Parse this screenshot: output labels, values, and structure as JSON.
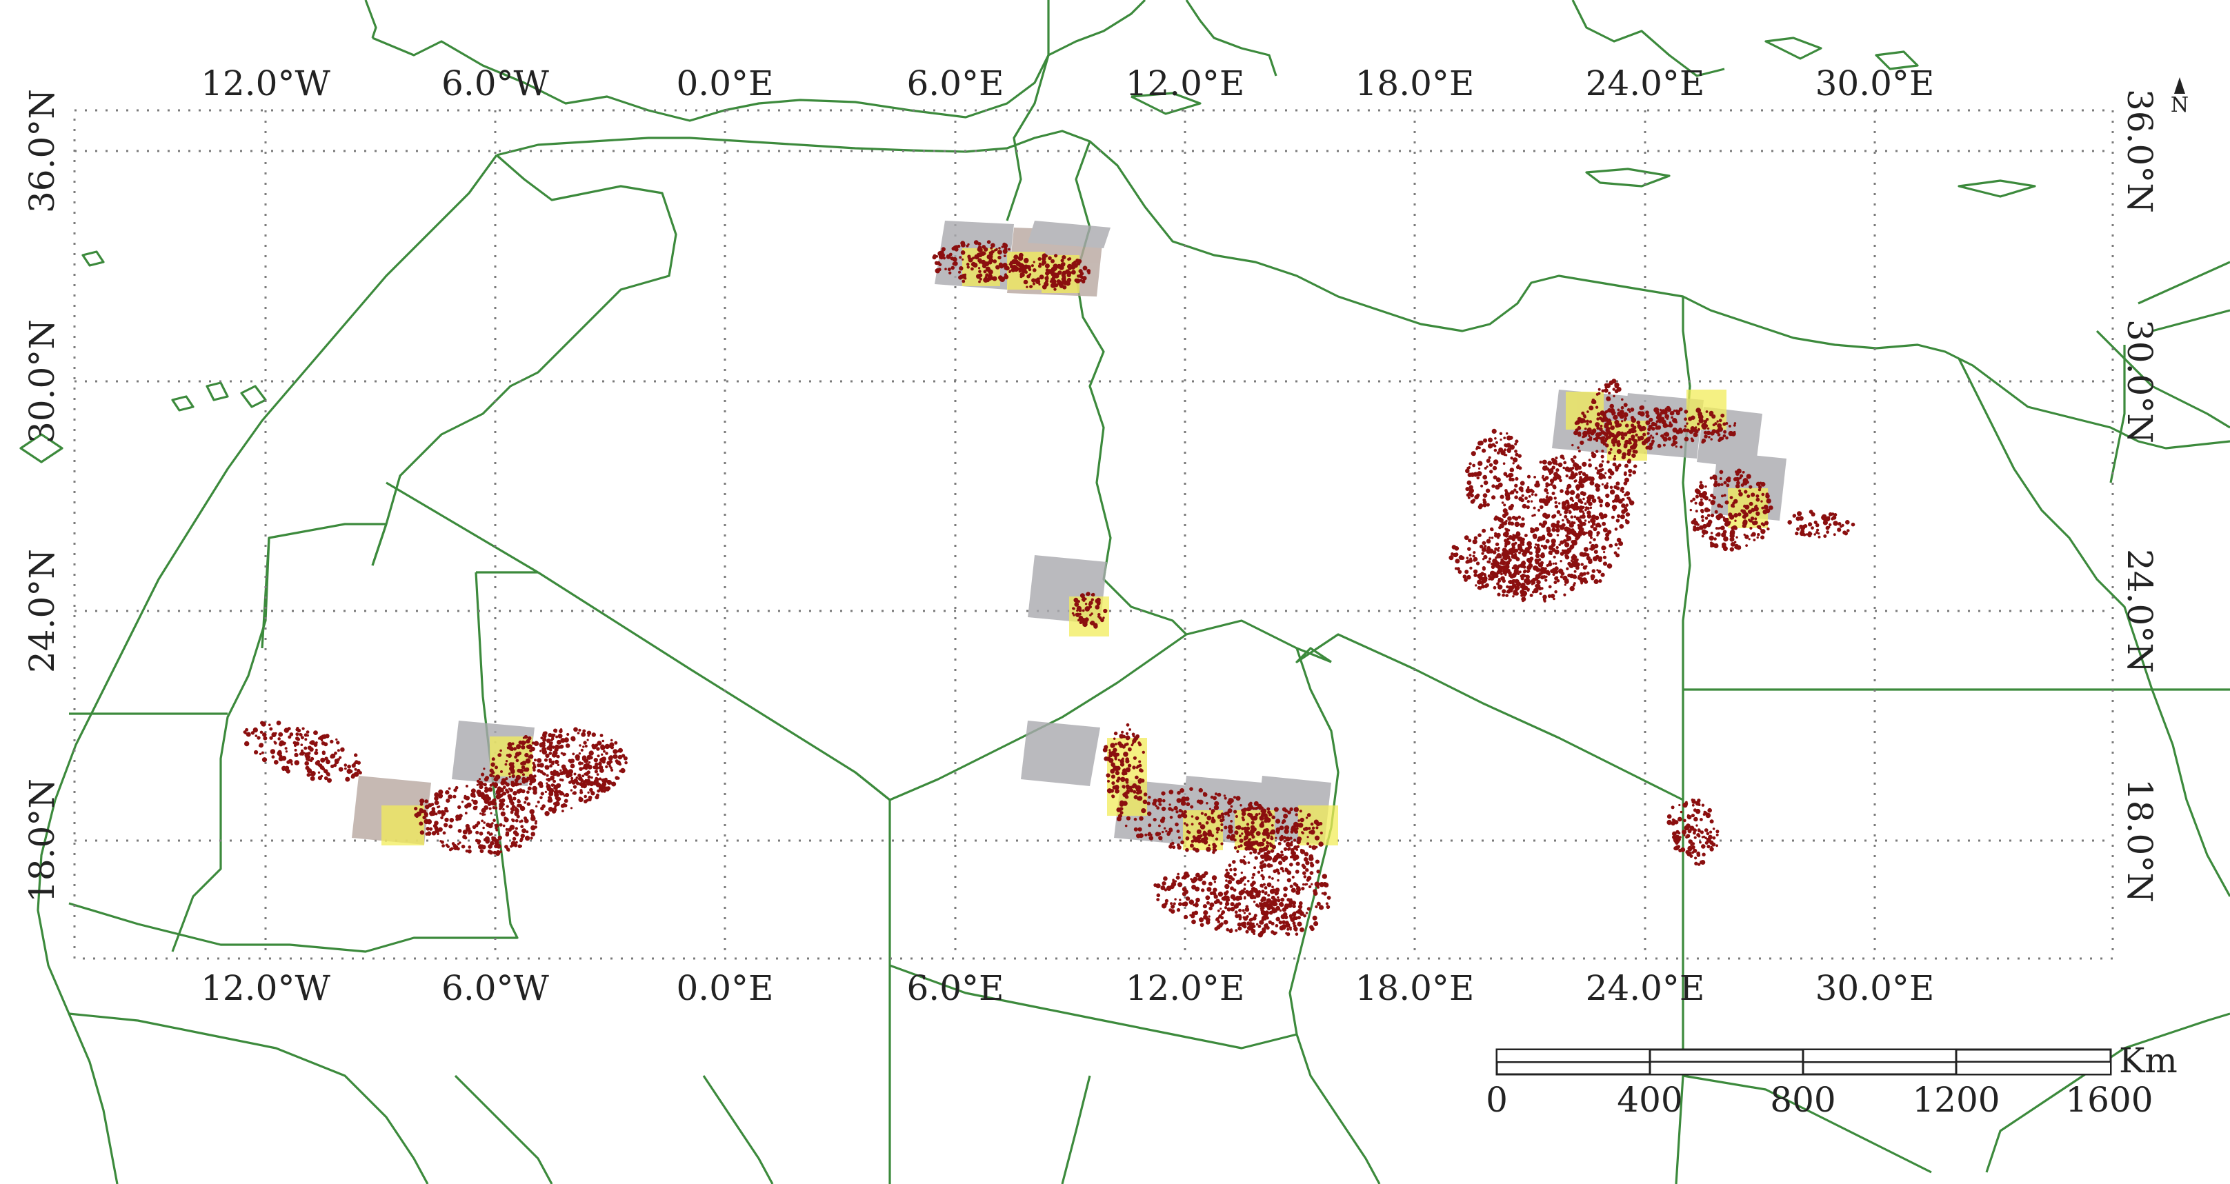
{
  "map": {
    "top_lon_labels": [
      "12.0°W",
      "6.0°W",
      "0.0°E",
      "6.0°E",
      "12.0°E",
      "18.0°E",
      "24.0°E",
      "30.0°E"
    ],
    "bottom_lon_labels": [
      "12.0°W",
      "6.0°W",
      "0.0°E",
      "6.0°E",
      "12.0°E",
      "18.0°E",
      "24.0°E",
      "30.0°E"
    ],
    "left_lat_labels": [
      "36.0°N",
      "30.0°N",
      "24.0°N",
      "18.0°N"
    ],
    "right_lat_labels": [
      "36.0°N",
      "30.0°N",
      "24.0°N",
      "18.0°N"
    ],
    "north_arrow": "N",
    "scale_bar": {
      "unit": "Km",
      "ticks": [
        "0",
        "400",
        "800",
        "1200",
        "1600"
      ]
    },
    "colors": {
      "border": "#3c8a3c",
      "detections": "#8b0f0f",
      "highlight_tiles": "#f2ec5a",
      "imagery_tiles": "#a8a8ac"
    }
  }
}
